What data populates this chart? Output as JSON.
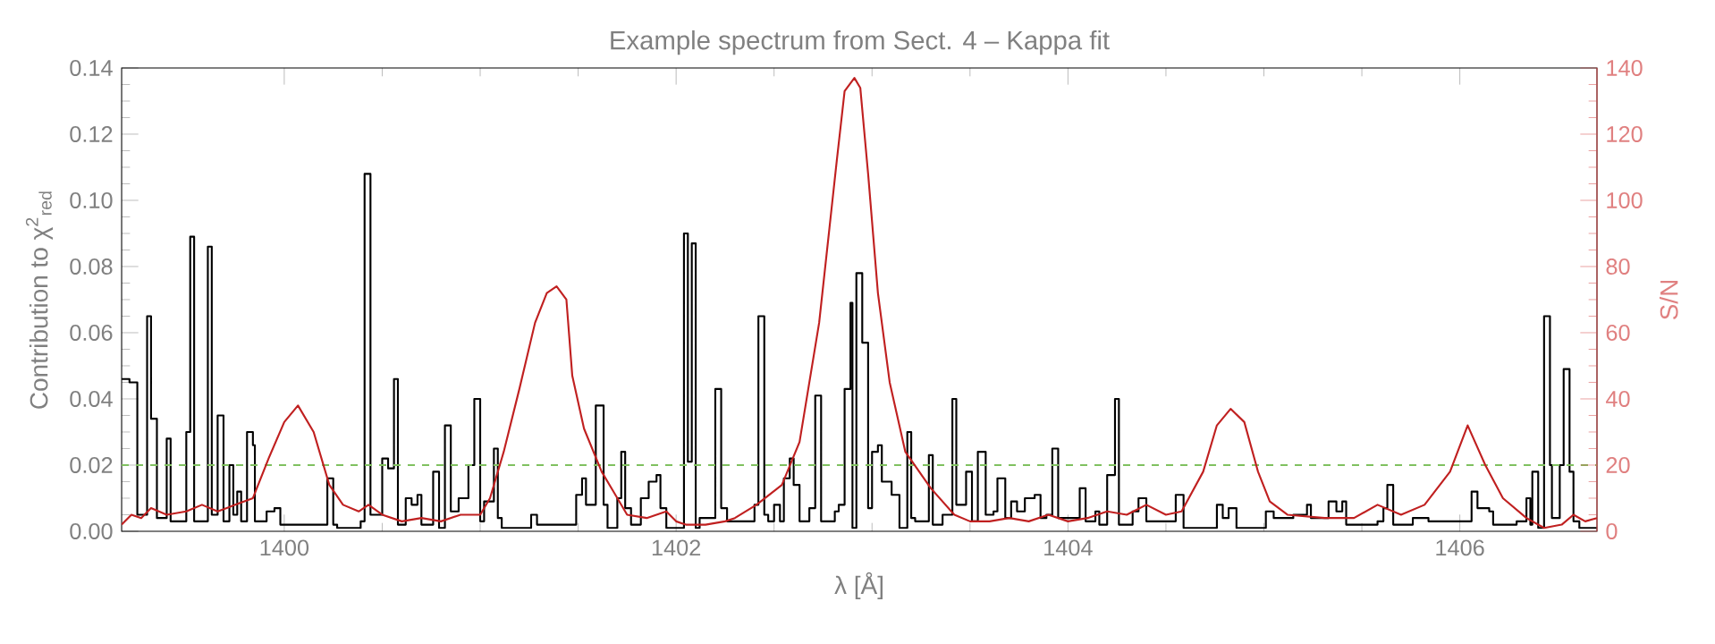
{
  "chart_data": {
    "type": "step",
    "title": "Example spectrum from Sect. 4 – Kappa fit",
    "xlabel": "λ [Å]",
    "ylabel": "Contribution to χ$^{2}$$_{red}$",
    "y2label": "S/N",
    "xlim": [
      1399.17,
      1406.7
    ],
    "xticks": [
      1400,
      1402,
      1404,
      1406
    ],
    "ylim": [
      0,
      0.14
    ],
    "yticks": [
      {
        "value": 0,
        "label": "0.00"
      },
      0.02,
      0.04,
      0.06,
      0.08,
      {
        "value": 0.1,
        "label": "0.10"
      },
      0.12,
      0.14
    ],
    "y2lim": [
      0,
      140
    ],
    "y2ticks": [
      0,
      20,
      40,
      60,
      80,
      100,
      120,
      140
    ],
    "ref_lines": [
      {
        "axis": "y",
        "value": 0.02,
        "color": "#80c060",
        "line_style": "dashed"
      }
    ],
    "series": [
      {
        "color": "#000000",
        "x": [
          1399.17,
          1399.21,
          1399.25,
          1399.3,
          1399.32,
          1399.35,
          1399.4,
          1399.42,
          1399.5,
          1399.52,
          1399.54,
          1399.61,
          1399.63,
          1399.66,
          1399.69,
          1399.72,
          1399.74,
          1399.76,
          1399.78,
          1399.81,
          1399.84,
          1399.85,
          1399.91,
          1399.95,
          1399.98,
          1400.22,
          1400.25,
          1400.27,
          1400.39,
          1400.41,
          1400.44,
          1400.5,
          1400.53,
          1400.56,
          1400.58,
          1400.62,
          1400.65,
          1400.68,
          1400.7,
          1400.76,
          1400.79,
          1400.82,
          1400.85,
          1400.89,
          1400.94,
          1400.97,
          1401.0,
          1401.02,
          1401.07,
          1401.09,
          1401.11,
          1401.26,
          1401.29,
          1401.49,
          1401.52,
          1401.54,
          1401.59,
          1401.63,
          1401.65,
          1401.7,
          1401.72,
          1401.74,
          1401.77,
          1401.82,
          1401.86,
          1401.9,
          1401.92,
          1401.95,
          1402.04,
          1402.06,
          1402.08,
          1402.1,
          1402.12,
          1402.2,
          1402.23,
          1402.26,
          1402.4,
          1402.42,
          1402.45,
          1402.47,
          1402.5,
          1402.53,
          1402.55,
          1402.58,
          1402.6,
          1402.63,
          1402.68,
          1402.71,
          1402.74,
          1402.81,
          1402.83,
          1402.86,
          1402.89,
          1402.9,
          1402.92,
          1402.95,
          1402.98,
          1403.0,
          1403.03,
          1403.05,
          1403.1,
          1403.14,
          1403.18,
          1403.2,
          1403.22,
          1403.29,
          1403.31,
          1403.36,
          1403.41,
          1403.43,
          1403.48,
          1403.51,
          1403.54,
          1403.58,
          1403.62,
          1403.64,
          1403.68,
          1403.71,
          1403.74,
          1403.78,
          1403.83,
          1403.86,
          1403.89,
          1403.92,
          1403.95,
          1404.06,
          1404.09,
          1404.14,
          1404.16,
          1404.2,
          1404.24,
          1404.26,
          1404.33,
          1404.36,
          1404.4,
          1404.55,
          1404.59,
          1404.76,
          1404.79,
          1404.82,
          1404.86,
          1405.01,
          1405.05,
          1405.15,
          1405.22,
          1405.24,
          1405.33,
          1405.37,
          1405.4,
          1405.42,
          1405.58,
          1405.61,
          1405.63,
          1405.66,
          1405.76,
          1405.84,
          1406.06,
          1406.09,
          1406.15,
          1406.17,
          1406.29,
          1406.34,
          1406.36,
          1406.37,
          1406.4,
          1406.43,
          1406.46,
          1406.47,
          1406.51,
          1406.53,
          1406.56,
          1406.58,
          1406.61,
          1406.7
        ],
        "values": [
          0.046,
          0.045,
          0.005,
          0.065,
          0.034,
          0.004,
          0.028,
          0.003,
          0.03,
          0.089,
          0.003,
          0.086,
          0.005,
          0.035,
          0.003,
          0.02,
          0.005,
          0.012,
          0.003,
          0.03,
          0.026,
          0.003,
          0.006,
          0.007,
          0.002,
          0.016,
          0.002,
          0.001,
          0.003,
          0.108,
          0.005,
          0.022,
          0.019,
          0.046,
          0.002,
          0.01,
          0.008,
          0.011,
          0.002,
          0.018,
          0.001,
          0.032,
          0.006,
          0.01,
          0.02,
          0.04,
          0.003,
          0.009,
          0.025,
          0.004,
          0.001,
          0.005,
          0.002,
          0.011,
          0.016,
          0.008,
          0.038,
          0.008,
          0.001,
          0.01,
          0.024,
          0.007,
          0.002,
          0.01,
          0.015,
          0.017,
          0.007,
          0.001,
          0.09,
          0.021,
          0.087,
          0.001,
          0.004,
          0.043,
          0.007,
          0.003,
          0.008,
          0.065,
          0.005,
          0.003,
          0.008,
          0.003,
          0.016,
          0.022,
          0.014,
          0.003,
          0.007,
          0.041,
          0.003,
          0.006,
          0.008,
          0.043,
          0.069,
          0.001,
          0.078,
          0.057,
          0.007,
          0.024,
          0.026,
          0.015,
          0.011,
          0.001,
          0.03,
          0.004,
          0.003,
          0.023,
          0.002,
          0.005,
          0.04,
          0.008,
          0.018,
          0.003,
          0.024,
          0.005,
          0.006,
          0.016,
          0.004,
          0.009,
          0.006,
          0.01,
          0.011,
          0.004,
          0.005,
          0.025,
          0.004,
          0.013,
          0.003,
          0.006,
          0.002,
          0.017,
          0.04,
          0.002,
          0.006,
          0.01,
          0.003,
          0.011,
          0.001,
          0.008,
          0.004,
          0.007,
          0.001,
          0.006,
          0.004,
          0.005,
          0.008,
          0.004,
          0.009,
          0.006,
          0.009,
          0.002,
          0.003,
          0.007,
          0.014,
          0.002,
          0.004,
          0.003,
          0.012,
          0.007,
          0.006,
          0.002,
          0.003,
          0.01,
          0.002,
          0.018,
          0.001,
          0.065,
          0.02,
          0.004,
          0.02,
          0.049,
          0.018,
          0.003,
          0.001,
          0.001
        ]
      },
      {
        "type": "line",
        "axis": "y2",
        "color": "#c02020",
        "x": [
          1399.17,
          1399.22,
          1399.27,
          1399.32,
          1399.4,
          1399.5,
          1399.58,
          1399.66,
          1399.75,
          1399.84,
          1399.92,
          1400.0,
          1400.07,
          1400.15,
          1400.23,
          1400.3,
          1400.38,
          1400.43,
          1400.5,
          1400.6,
          1400.7,
          1400.8,
          1400.9,
          1401.0,
          1401.05,
          1401.12,
          1401.2,
          1401.28,
          1401.34,
          1401.39,
          1401.44,
          1401.47,
          1401.53,
          1401.62,
          1401.68,
          1401.75,
          1401.85,
          1401.95,
          1402.0,
          1402.05,
          1402.15,
          1402.25,
          1402.3,
          1402.41,
          1402.54,
          1402.63,
          1402.73,
          1402.82,
          1402.86,
          1402.91,
          1402.94,
          1402.98,
          1403.03,
          1403.09,
          1403.17,
          1403.3,
          1403.42,
          1403.5,
          1403.6,
          1403.7,
          1403.8,
          1403.9,
          1404.0,
          1404.1,
          1404.2,
          1404.3,
          1404.4,
          1404.5,
          1404.58,
          1404.69,
          1404.76,
          1404.83,
          1404.9,
          1404.97,
          1405.03,
          1405.12,
          1405.31,
          1405.46,
          1405.58,
          1405.7,
          1405.82,
          1405.95,
          1406.04,
          1406.13,
          1406.22,
          1406.34,
          1406.43,
          1406.52,
          1406.58,
          1406.64,
          1406.7
        ],
        "values": [
          2,
          5,
          4,
          7,
          5,
          6,
          8,
          6,
          8,
          10,
          22,
          33,
          38,
          30,
          14,
          8,
          6,
          8,
          5,
          3,
          4,
          3,
          5,
          5,
          10,
          24,
          43,
          63,
          72,
          74,
          70,
          47,
          31,
          18,
          12,
          5,
          4,
          6,
          3,
          2,
          2,
          3,
          4,
          8,
          14,
          27,
          63,
          112,
          133,
          137,
          134,
          108,
          72,
          45,
          24,
          13,
          5,
          3,
          3,
          4,
          3,
          5,
          3,
          4,
          6,
          5,
          8,
          5,
          6,
          18,
          32,
          37,
          33,
          18,
          9,
          5,
          4,
          4,
          8,
          5,
          8,
          18,
          32,
          20,
          10,
          4,
          1,
          2,
          5,
          3,
          4
        ]
      }
    ]
  }
}
